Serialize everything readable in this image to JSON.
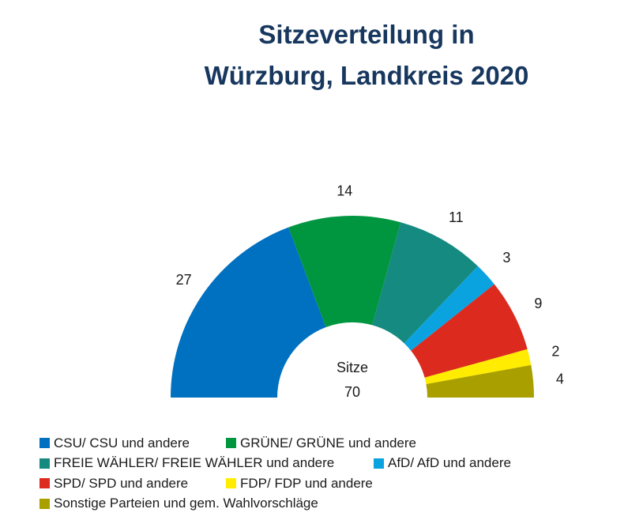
{
  "title_line1": "Sitzeverteilung in",
  "title_line2": "Würzburg, Landkreis 2020",
  "chart_data": {
    "type": "pie",
    "variant": "semicircle-donut",
    "title": "Sitzeverteilung in Würzburg, Landkreis 2020",
    "center_label": "Sitze",
    "total": 70,
    "slices": [
      {
        "label": "CSU/ CSU und andere",
        "value": 27,
        "color": "#0070c0"
      },
      {
        "label": "GRÜNE/ GRÜNE und andere",
        "value": 14,
        "color": "#009640"
      },
      {
        "label": "FREIE WÄHLER/ FREIE WÄHLER und andere",
        "value": 11,
        "color": "#148a80"
      },
      {
        "label": "AfD/ AfD und andere",
        "value": 3,
        "color": "#0aa3e0"
      },
      {
        "label": "SPD/ SPD und andere",
        "value": 9,
        "color": "#dc2a1e"
      },
      {
        "label": "FDP/ FDP und andere",
        "value": 2,
        "color": "#ffec00"
      },
      {
        "label": "Sonstige Parteien und gem. Wahlvorschläge",
        "value": 4,
        "color": "#a9a000"
      }
    ]
  }
}
